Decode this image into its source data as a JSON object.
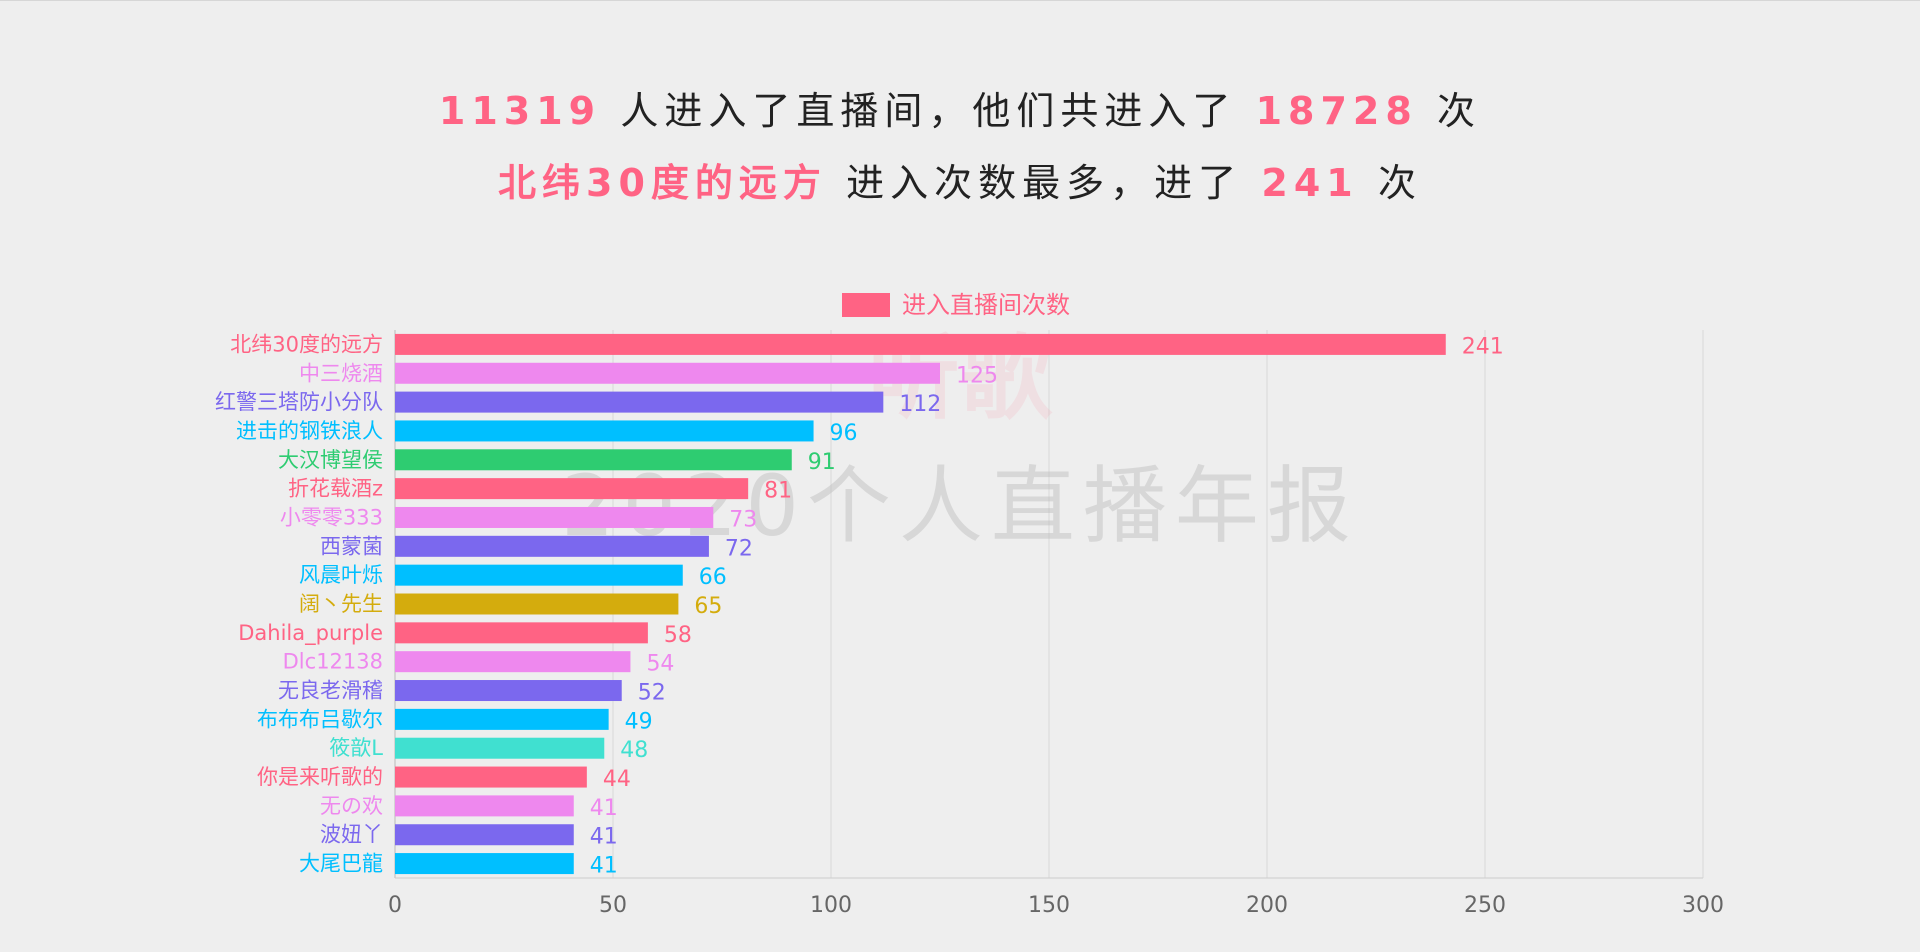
{
  "headline": {
    "line1": {
      "viewers": "11319",
      "text_a": "人进入了直播间，他们共进入了",
      "entries": "18728",
      "text_b": "次"
    },
    "line2": {
      "top_user": "北纬30度的远方",
      "text_a": "进入次数最多，进了",
      "top_count": "241",
      "text_b": "次"
    }
  },
  "watermark": {
    "line1": "听歌",
    "line2": "2020个人直播年报"
  },
  "colors": {
    "accent": "#ff6384",
    "palette": [
      "#ff6384",
      "#ee88ee",
      "#7b68ee",
      "#00bfff",
      "#2ecc71",
      "#d4ac0d",
      "#40e0d0"
    ]
  },
  "chart_data": {
    "type": "bar",
    "orientation": "horizontal",
    "legend": [
      "进入直播间次数"
    ],
    "legend_position": "top-center",
    "grid": true,
    "xlim": [
      0,
      300
    ],
    "x_ticks": [
      "0",
      "50",
      "100",
      "150",
      "200",
      "250",
      "300"
    ],
    "categories": [
      "北纬30度的远方",
      "中三烧酒",
      "红警三塔防小分队",
      "进击的钢铁浪人",
      "大汉博望侯",
      "折花载酒z",
      "小零零333",
      "西蒙菌",
      "风晨叶烁",
      "阔丶先生",
      "Dahila_purple",
      "Dlc12138",
      "无良老滑稽",
      "布布布吕歇尔",
      "筱歆L",
      "你是来听歌的",
      "无の欢",
      "波妞丫",
      "大尾巴龍"
    ],
    "series": [
      {
        "name": "进入直播间次数",
        "values": [
          241,
          125,
          112,
          96,
          91,
          81,
          73,
          72,
          66,
          65,
          58,
          54,
          52,
          49,
          48,
          44,
          41,
          41,
          41
        ],
        "colors": [
          "#ff6384",
          "#ee88ee",
          "#7b68ee",
          "#00bfff",
          "#2ecc71",
          "#ff6384",
          "#ee88ee",
          "#7b68ee",
          "#00bfff",
          "#d4ac0d",
          "#ff6384",
          "#ee88ee",
          "#7b68ee",
          "#00bfff",
          "#40e0d0",
          "#ff6384",
          "#ee88ee",
          "#7b68ee",
          "#00bfff"
        ]
      }
    ]
  }
}
